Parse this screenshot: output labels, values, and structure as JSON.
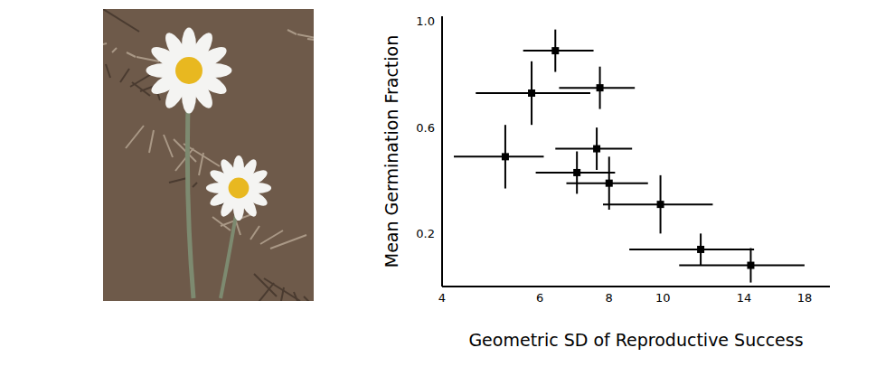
{
  "chart_data": {
    "type": "scatter",
    "x_label": "Geometric SD of Reproductive Success",
    "y_label": "Mean Germination Fraction",
    "x": [
      6.4,
      5.8,
      7.7,
      5.2,
      7.6,
      7.0,
      8.0,
      9.9,
      11.7,
      14.4
    ],
    "y": [
      0.89,
      0.73,
      0.75,
      0.49,
      0.52,
      0.43,
      0.39,
      0.31,
      0.14,
      0.08
    ],
    "x_low": [
      5.6,
      4.6,
      6.5,
      4.2,
      6.4,
      5.9,
      6.7,
      7.8,
      8.7,
      10.7
    ],
    "x_high": [
      7.5,
      7.4,
      8.9,
      6.1,
      8.8,
      8.2,
      9.4,
      12.3,
      14.6,
      18.0
    ],
    "yerr": [
      0.08,
      0.12,
      0.08,
      0.12,
      0.08,
      0.08,
      0.1,
      0.11,
      0.06,
      0.065
    ],
    "xlim": [
      4,
      20
    ],
    "ylim": [
      0,
      1.02
    ],
    "xticks": [
      4,
      6,
      8,
      10,
      14,
      18
    ],
    "yticks": [
      0.2,
      0.6,
      {
        "value": 1.0,
        "label": "1.0"
      }
    ],
    "log": "x",
    "marker": "square",
    "color": "#000000"
  }
}
